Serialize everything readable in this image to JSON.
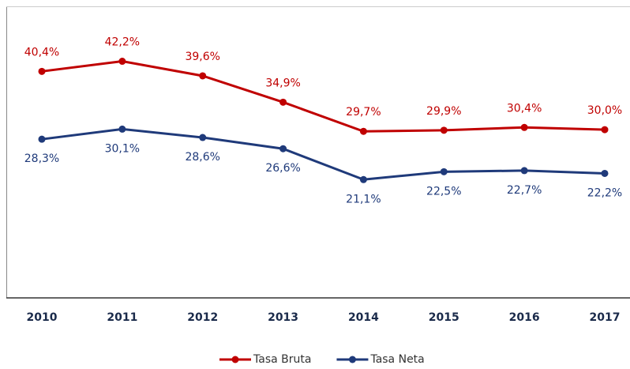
{
  "chart_data": {
    "type": "line",
    "categories": [
      "2010",
      "2011",
      "2012",
      "2013",
      "2014",
      "2015",
      "2016",
      "2017"
    ],
    "series": [
      {
        "name": "Tasa Bruta",
        "color": "#c00000",
        "values": [
          40.4,
          42.2,
          39.6,
          34.9,
          29.7,
          29.9,
          30.4,
          30.0
        ],
        "value_labels": [
          "40,4%",
          "42,2%",
          "39,6%",
          "34,9%",
          "29,7%",
          "29,9%",
          "30,4%",
          "30,0%"
        ]
      },
      {
        "name": "Tasa Neta",
        "color": "#1f3a7a",
        "values": [
          28.3,
          30.1,
          28.6,
          26.6,
          21.1,
          22.5,
          22.7,
          22.2
        ],
        "value_labels": [
          "28,3%",
          "30,1%",
          "28,6%",
          "26,6%",
          "21,1%",
          "22,5%",
          "22,7%",
          "22,2%"
        ]
      }
    ],
    "ylim": [
      0,
      52
    ],
    "legend": "bottom"
  }
}
